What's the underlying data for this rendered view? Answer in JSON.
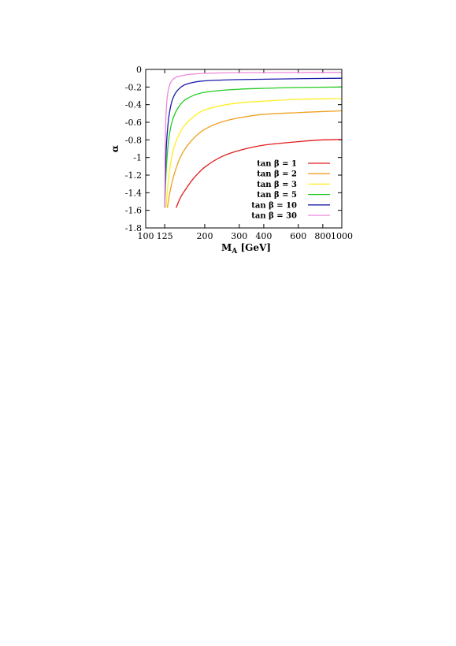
{
  "chart_data": {
    "type": "line",
    "title": "",
    "xlabel": "M_A [GeV]",
    "ylabel": "α",
    "x_scale": "log",
    "xlim": [
      100,
      1000
    ],
    "ylim": [
      -1.8,
      0
    ],
    "x_tick_labels": [
      "100",
      "125",
      "200",
      "300",
      "400",
      "600",
      "800",
      "1000"
    ],
    "y_tick_labels": [
      "0",
      "-0.2",
      "-0.4",
      "-0.6",
      "-0.8",
      "-1",
      "-1.2",
      "-1.4",
      "-1.6",
      "-1.8"
    ],
    "legend_position": "bottom-right",
    "series": [
      {
        "name": "tan β = 1",
        "color": "#e41a1c",
        "x": [
          143,
          150,
          160,
          175,
          200,
          250,
          300,
          400,
          600,
          800,
          1000
        ],
        "y": [
          -1.57,
          -1.46,
          -1.36,
          -1.24,
          -1.11,
          -0.98,
          -0.92,
          -0.86,
          -0.82,
          -0.8,
          -0.795
        ]
      },
      {
        "name": "tan β = 2",
        "color": "#f0a020",
        "x": [
          129,
          132,
          136,
          142,
          150,
          165,
          200,
          250,
          300,
          400,
          600,
          1000
        ],
        "y": [
          -1.57,
          -1.43,
          -1.29,
          -1.14,
          -1.0,
          -0.85,
          -0.68,
          -0.59,
          -0.55,
          -0.51,
          -0.49,
          -0.47
        ]
      },
      {
        "name": "tan β = 3",
        "color": "#ffee22",
        "x": [
          127,
          129,
          132,
          137,
          145,
          160,
          200,
          300,
          400,
          600,
          1000
        ],
        "y": [
          -1.57,
          -1.38,
          -1.17,
          -0.95,
          -0.78,
          -0.62,
          -0.46,
          -0.38,
          -0.36,
          -0.34,
          -0.33
        ]
      },
      {
        "name": "tan β = 5",
        "color": "#22cc22",
        "x": [
          125,
          126,
          128,
          131,
          136,
          145,
          160,
          200,
          300,
          400,
          600,
          1000
        ],
        "y": [
          -1.57,
          -1.33,
          -1.05,
          -0.8,
          -0.6,
          -0.45,
          -0.34,
          -0.26,
          -0.225,
          -0.215,
          -0.205,
          -0.2
        ]
      },
      {
        "name": "tan β = 10",
        "color": "#1a1aaa",
        "x": [
          125,
          126,
          127,
          129,
          132,
          137,
          145,
          160,
          200,
          300,
          1000
        ],
        "y": [
          -1.57,
          -1.2,
          -0.95,
          -0.7,
          -0.5,
          -0.34,
          -0.24,
          -0.17,
          -0.13,
          -0.115,
          -0.1
        ]
      },
      {
        "name": "tan β = 30",
        "color": "#ee88dd",
        "x": [
          125,
          125.5,
          126.5,
          128,
          130,
          134,
          140,
          150,
          170,
          200,
          300,
          1000
        ],
        "y": [
          -1.57,
          -1.0,
          -0.6,
          -0.38,
          -0.25,
          -0.15,
          -0.1,
          -0.075,
          -0.055,
          -0.045,
          -0.037,
          -0.033
        ]
      }
    ]
  }
}
